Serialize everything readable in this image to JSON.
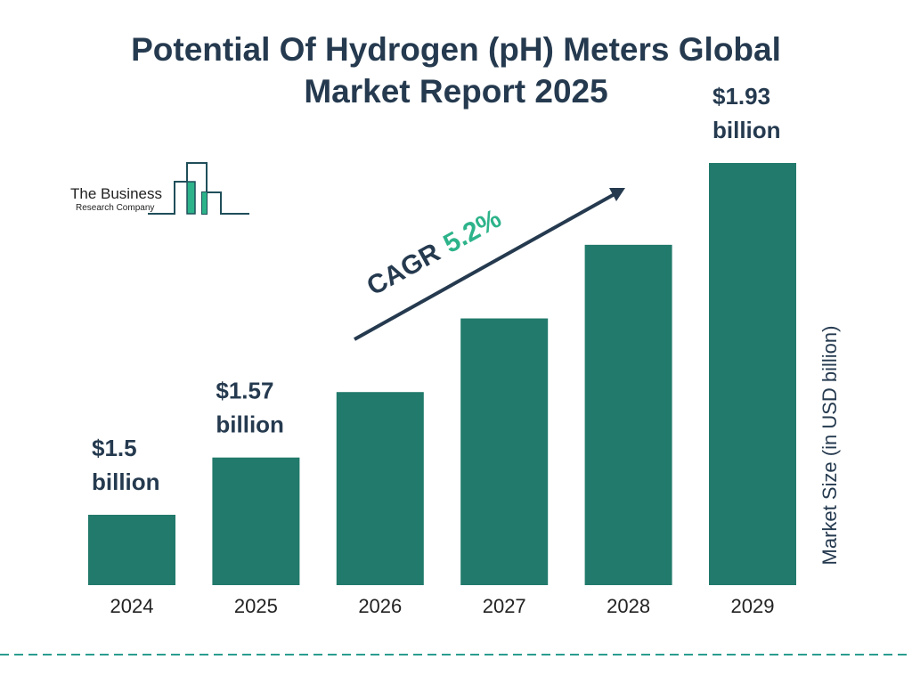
{
  "title_line1": "Potential Of Hydrogen (pH) Meters Global",
  "title_line2": "Market Report 2025",
  "logo": {
    "line1": "The Business",
    "line2": "Research Company"
  },
  "colors": {
    "bar": "#217a6b",
    "text": "#253a4f",
    "cagr": "#2db38a",
    "dash": "#2a9d8f"
  },
  "cagr": {
    "label": "CAGR",
    "value": "5.2%"
  },
  "chart_data": {
    "type": "bar",
    "title": "Potential Of Hydrogen (pH) Meters Global Market Report 2025",
    "ylabel": "Market Size (in USD billion)",
    "categories": [
      "2024",
      "2025",
      "2026",
      "2027",
      "2028",
      "2029"
    ],
    "values": [
      1.5,
      1.57,
      1.65,
      1.74,
      1.83,
      1.93
    ],
    "data_labels": [
      [
        "$1.5",
        "billion"
      ],
      [
        "$1.57",
        "billion"
      ],
      null,
      null,
      null,
      [
        "$1.93",
        "billion"
      ]
    ],
    "grid": false
  }
}
